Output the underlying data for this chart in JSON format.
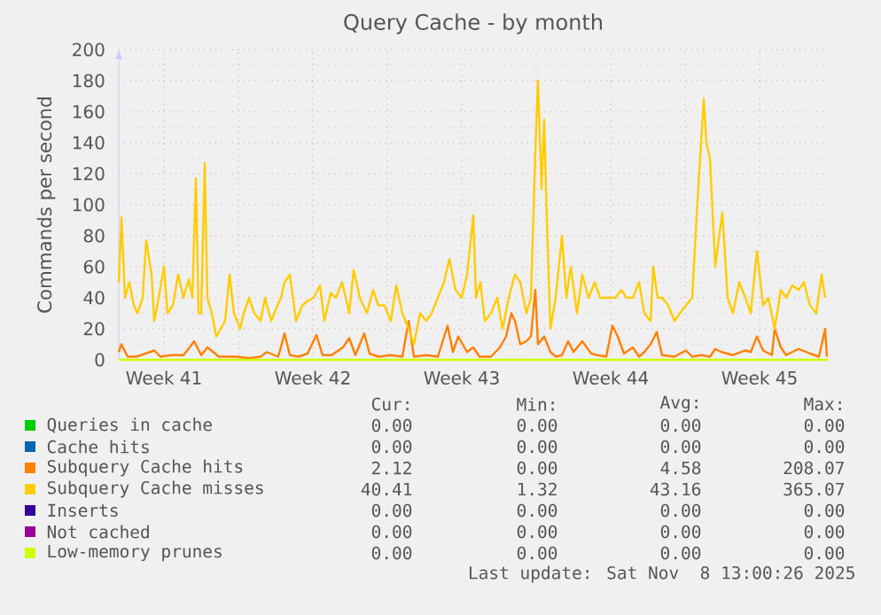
{
  "chart_data": {
    "type": "line",
    "title": "Query Cache - by month",
    "ylabel": "Commands per second",
    "xlim": [
      "2025-10-06T09:00",
      "2025-11-08T17:00"
    ],
    "ylim": [
      0,
      200
    ],
    "xticks": [
      {
        "value": "2025-10-08T12:00",
        "label": "Week 41"
      },
      {
        "value": "2025-10-12",
        "label": null
      },
      {
        "value": "2025-10-15T12:00",
        "label": "Week 42"
      },
      {
        "value": "2025-10-19",
        "label": null
      },
      {
        "value": "2025-10-22T12:00",
        "label": "Week 43"
      },
      {
        "value": "2025-10-26",
        "label": null
      },
      {
        "value": "2025-10-29T12:00",
        "label": "Week 44"
      },
      {
        "value": "2025-11-02",
        "label": null
      },
      {
        "value": "2025-11-05T12:00",
        "label": "Week 45"
      }
    ],
    "yticks": [
      0,
      20,
      40,
      60,
      80,
      100,
      120,
      140,
      160,
      180,
      200
    ],
    "grid": true,
    "legend": "bottom",
    "marker": "none",
    "line_style": "solid",
    "series": [
      {
        "name": "Queries in cache",
        "color": "#00cc00"
      },
      {
        "name": "Cache hits",
        "color": "#0066b3"
      },
      {
        "name": "Subquery Cache hits",
        "color": "#ff8000",
        "x": [
          "2025-10-06T09:00",
          "2025-10-06T12:00",
          "2025-10-06T19:00",
          "2025-10-07T05:00",
          "2025-10-07T15:00",
          "2025-10-08T01:00",
          "2025-10-08T08:00",
          "2025-10-08T21:00",
          "2025-10-09T10:00",
          "2025-10-09T17:00",
          "2025-10-09T22:00",
          "2025-10-10T06:00",
          "2025-10-10T13:00",
          "2025-10-11T02:00",
          "2025-10-11T22:00",
          "2025-10-12T12:00",
          "2025-10-13T01:00",
          "2025-10-13T08:00",
          "2025-10-13T21:00",
          "2025-10-14T04:00",
          "2025-10-14T10:00",
          "2025-10-14T20:00",
          "2025-10-15T06:00",
          "2025-10-15T16:00",
          "2025-10-15T23:00",
          "2025-10-16T09:00",
          "2025-10-16T22:00",
          "2025-10-17T05:00",
          "2025-10-17T12:00",
          "2025-10-17T22:00",
          "2025-10-18T04:00",
          "2025-10-18T14:00",
          "2025-10-19T04:00",
          "2025-10-19T17:00",
          "2025-10-20T00:00",
          "2025-10-20T06:00",
          "2025-10-20T20:00",
          "2025-10-21T09:00",
          "2025-10-21T20:00",
          "2025-10-22T02:00",
          "2025-10-22T08:00",
          "2025-10-22T18:00",
          "2025-10-23T01:00",
          "2025-10-23T08:00",
          "2025-10-23T21:00",
          "2025-10-24T07:00",
          "2025-10-24T14:00",
          "2025-10-24T20:00",
          "2025-10-25T00:00",
          "2025-10-25T06:00",
          "2025-10-25T13:00",
          "2025-10-25T18:00",
          "2025-10-25T23:00",
          "2025-10-26T02:00",
          "2025-10-26T09:00",
          "2025-10-26T16:00",
          "2025-10-26T22:00",
          "2025-10-27T05:00",
          "2025-10-27T12:00",
          "2025-10-27T18:00",
          "2025-10-28T04:00",
          "2025-10-28T14:00",
          "2025-10-28T21:00",
          "2025-10-29T07:00",
          "2025-10-29T14:00",
          "2025-10-29T20:00",
          "2025-10-30T03:00",
          "2025-10-30T13:00",
          "2025-10-30T20:00",
          "2025-10-31T02:00",
          "2025-10-31T09:00",
          "2025-10-31T16:00",
          "2025-10-31T22:00",
          "2025-11-01T12:00",
          "2025-11-02T01:00",
          "2025-11-02T08:00",
          "2025-11-02T18:00",
          "2025-11-03T04:00",
          "2025-11-03T10:00",
          "2025-11-03T17:00",
          "2025-11-04T06:00",
          "2025-11-04T20:00",
          "2025-11-05T02:00",
          "2025-11-05T09:00",
          "2025-11-05T16:00",
          "2025-11-06T02:00",
          "2025-11-06T05:00",
          "2025-11-06T12:00",
          "2025-11-06T18:00",
          "2025-11-07T08:00",
          "2025-11-07T21:00",
          "2025-11-08T07:00",
          "2025-11-08T14:00",
          "2025-11-08T16:00"
        ],
        "values": [
          5,
          10,
          2,
          2,
          4,
          6,
          2,
          3,
          3,
          8,
          12,
          3,
          8,
          2,
          2,
          1,
          2,
          5,
          2,
          17,
          3,
          2,
          4,
          16,
          3,
          3,
          8,
          14,
          3,
          17,
          4,
          2,
          3,
          2,
          25,
          2,
          3,
          2,
          22,
          5,
          15,
          5,
          8,
          2,
          2,
          8,
          15,
          30,
          25,
          10,
          12,
          15,
          45,
          10,
          15,
          5,
          2,
          3,
          12,
          5,
          12,
          4,
          3,
          2,
          22,
          15,
          4,
          8,
          2,
          5,
          10,
          18,
          3,
          2,
          6,
          2,
          3,
          2,
          7,
          5,
          3,
          6,
          5,
          15,
          6,
          3,
          20,
          8,
          3,
          7,
          4,
          2,
          20,
          2
        ]
      },
      {
        "name": "Subquery Cache misses",
        "color": "#ffcc00",
        "x": [
          "2025-10-06T09:00",
          "2025-10-06T12:00",
          "2025-10-06T16:00",
          "2025-10-06T21:00",
          "2025-10-07T02:00",
          "2025-10-07T06:00",
          "2025-10-07T12:00",
          "2025-10-07T16:00",
          "2025-10-07T22:00",
          "2025-10-08T01:00",
          "2025-10-08T06:00",
          "2025-10-08T12:00",
          "2025-10-08T16:00",
          "2025-10-08T22:00",
          "2025-10-09T04:00",
          "2025-10-09T10:00",
          "2025-10-09T16:00",
          "2025-10-09T20:00",
          "2025-10-10T00:00",
          "2025-10-10T03:00",
          "2025-10-10T06:00",
          "2025-10-10T10:00",
          "2025-10-10T13:00",
          "2025-10-10T18:00",
          "2025-10-10T23:00",
          "2025-10-11T04:00",
          "2025-10-11T09:00",
          "2025-10-11T14:00",
          "2025-10-11T19:00",
          "2025-10-12T02:00",
          "2025-10-12T06:00",
          "2025-10-12T12:00",
          "2025-10-12T18:00",
          "2025-10-13T01:00",
          "2025-10-13T06:00",
          "2025-10-13T13:00",
          "2025-10-13T20:00",
          "2025-10-14T00:00",
          "2025-10-14T04:00",
          "2025-10-14T10:00",
          "2025-10-14T17:00",
          "2025-10-15T00:00",
          "2025-10-15T06:00",
          "2025-10-15T13:00",
          "2025-10-15T20:00",
          "2025-10-16T01:00",
          "2025-10-16T08:00",
          "2025-10-16T14:00",
          "2025-10-16T21:00",
          "2025-10-17T05:00",
          "2025-10-17T10:00",
          "2025-10-17T17:00",
          "2025-10-18T01:00",
          "2025-10-18T08:00",
          "2025-10-18T14:00",
          "2025-10-18T21:00",
          "2025-10-19T04:00",
          "2025-10-19T10:00",
          "2025-10-19T17:00",
          "2025-10-20T00:00",
          "2025-10-20T06:00",
          "2025-10-20T13:00",
          "2025-10-20T20:00",
          "2025-10-21T02:00",
          "2025-10-21T09:00",
          "2025-10-21T16:00",
          "2025-10-21T22:00",
          "2025-10-22T05:00",
          "2025-10-22T12:00",
          "2025-10-22T18:00",
          "2025-10-23T01:00",
          "2025-10-23T04:00",
          "2025-10-23T09:00",
          "2025-10-23T14:00",
          "2025-10-23T21:00",
          "2025-10-24T04:00",
          "2025-10-24T10:00",
          "2025-10-24T17:00",
          "2025-10-25T00:00",
          "2025-10-25T06:00",
          "2025-10-25T13:00",
          "2025-10-25T18:00",
          "2025-10-25T23:00",
          "2025-10-26T02:00",
          "2025-10-26T06:00",
          "2025-10-26T09:00",
          "2025-10-26T12:00",
          "2025-10-26T16:00",
          "2025-10-26T22:00",
          "2025-10-27T05:00",
          "2025-10-27T10:00",
          "2025-10-27T15:00",
          "2025-10-27T22:00",
          "2025-10-28T04:00",
          "2025-10-28T11:00",
          "2025-10-28T18:00",
          "2025-10-29T00:00",
          "2025-10-29T07:00",
          "2025-10-29T17:00",
          "2025-10-30T00:00",
          "2025-10-30T06:00",
          "2025-10-30T13:00",
          "2025-10-30T20:00",
          "2025-10-31T02:00",
          "2025-10-31T09:00",
          "2025-10-31T12:00",
          "2025-10-31T17:00",
          "2025-10-31T22:00",
          "2025-11-01T05:00",
          "2025-11-01T12:00",
          "2025-11-01T18:00",
          "2025-11-02T01:00",
          "2025-11-02T08:00",
          "2025-11-02T13:00",
          "2025-11-02T18:00",
          "2025-11-02T21:00",
          "2025-11-03T00:00",
          "2025-11-03T04:00",
          "2025-11-03T10:00",
          "2025-11-03T14:00",
          "2025-11-03T18:00",
          "2025-11-04T00:00",
          "2025-11-04T06:00",
          "2025-11-04T13:00",
          "2025-11-04T20:00",
          "2025-11-05T02:00",
          "2025-11-05T09:00",
          "2025-11-05T16:00",
          "2025-11-05T22:00",
          "2025-11-06T05:00",
          "2025-11-06T12:00",
          "2025-11-06T18:00",
          "2025-11-07T01:00",
          "2025-11-07T08:00",
          "2025-11-07T14:00",
          "2025-11-07T21:00",
          "2025-11-08T04:00",
          "2025-11-08T10:00",
          "2025-11-08T14:00"
        ],
        "values": [
          50,
          92,
          40,
          50,
          35,
          30,
          40,
          77,
          55,
          25,
          40,
          60,
          30,
          35,
          55,
          40,
          52,
          40,
          117,
          30,
          30,
          127,
          40,
          30,
          15,
          20,
          25,
          55,
          30,
          20,
          30,
          40,
          30,
          25,
          40,
          25,
          35,
          40,
          50,
          55,
          25,
          35,
          38,
          40,
          48,
          25,
          43,
          40,
          50,
          30,
          58,
          40,
          30,
          45,
          35,
          35,
          25,
          48,
          30,
          20,
          10,
          30,
          25,
          30,
          40,
          50,
          65,
          45,
          40,
          55,
          93,
          40,
          50,
          25,
          30,
          40,
          20,
          40,
          55,
          50,
          30,
          40,
          135,
          180,
          110,
          155,
          90,
          20,
          40,
          80,
          40,
          60,
          30,
          55,
          40,
          50,
          40,
          40,
          40,
          45,
          40,
          40,
          50,
          30,
          25,
          60,
          40,
          40,
          35,
          25,
          30,
          35,
          40,
          93,
          140,
          168,
          140,
          130,
          60,
          78,
          95,
          40,
          30,
          50,
          40,
          30,
          70,
          35,
          40,
          20,
          45,
          40,
          48,
          45,
          50,
          35,
          30,
          55,
          40
        ]
      },
      {
        "name": "Inserts",
        "color": "#330099"
      },
      {
        "name": "Not cached",
        "color": "#990099"
      },
      {
        "name": "Low-memory prunes",
        "color": "#ccff00",
        "x": [
          "2025-10-06T09:00",
          "2025-11-08T17:00"
        ],
        "values": [
          0,
          0
        ]
      }
    ],
    "annotations": [
      "Cur:",
      "Min:",
      "Avg:",
      "Max:",
      "0.00",
      "0.00",
      "0.00",
      "0.00",
      "0.00",
      "0.00",
      "0.00",
      "0.00",
      "2.12",
      "0.00",
      "4.58",
      "208.07",
      "40.41",
      "1.32",
      "43.16",
      "365.07",
      "0.00",
      "0.00",
      "0.00",
      "0.00",
      "0.00",
      "0.00",
      "0.00",
      "0.00",
      "0.00",
      "0.00",
      "0.00",
      "0.00",
      "Last update: Sat Nov  8 13:00:26 2025"
    ]
  }
}
